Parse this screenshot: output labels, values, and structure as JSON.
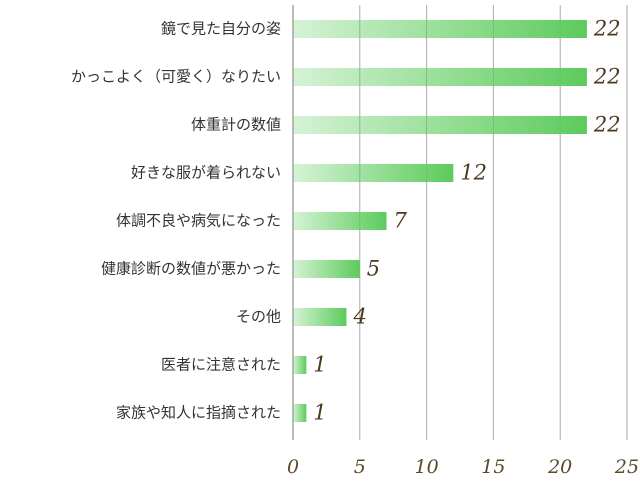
{
  "chart_data": {
    "type": "bar",
    "orientation": "horizontal",
    "color": "#5ccb5c",
    "categories": [
      "鏡で見た自分の姿",
      "かっこよく（可愛く）なりたい",
      "体重計の数値",
      "好きな服が着られない",
      "体調不良や病気になった",
      "健康診断の数値が悪かった",
      "その他",
      "医者に注意された",
      "家族や知人に指摘された"
    ],
    "values": [
      22,
      22,
      22,
      12,
      7,
      5,
      4,
      1,
      1
    ],
    "xlim": [
      0,
      25
    ],
    "xticks": [
      0,
      5,
      10,
      15,
      20,
      25
    ],
    "grid": true
  }
}
